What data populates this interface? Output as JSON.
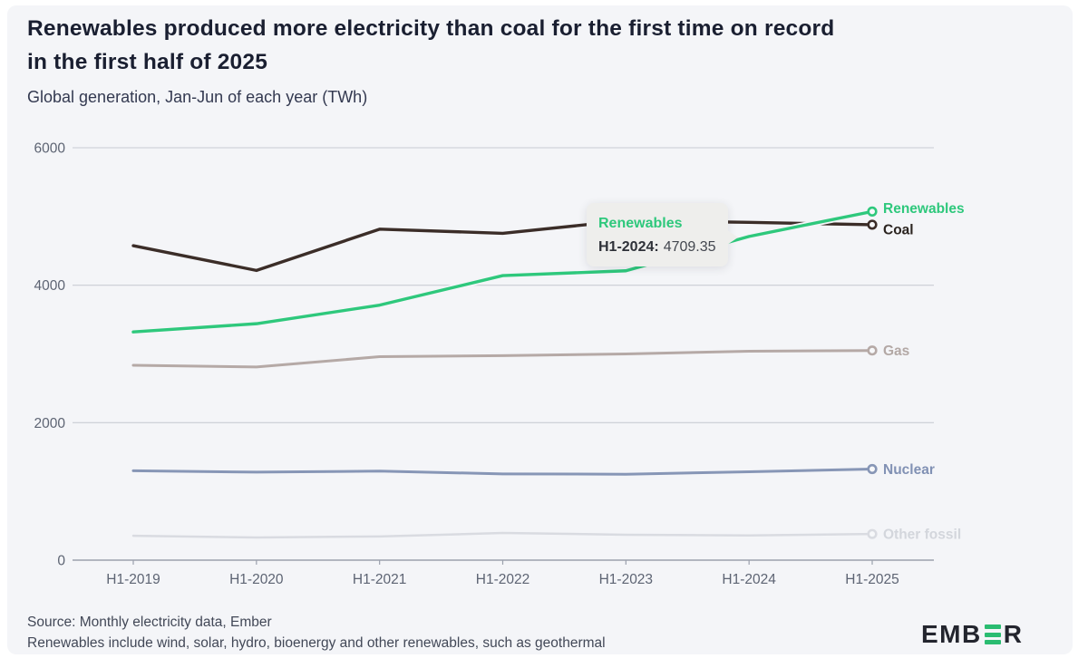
{
  "page": {
    "outer_background": "#ffffff",
    "card_background": "#f4f5f8"
  },
  "header": {
    "title_line1": "Renewables produced more electricity than coal for the first time on record",
    "title_line2": "in the first half of 2025",
    "subtitle": "Global generation, Jan-Jun of each year (TWh)"
  },
  "chart_data": {
    "type": "line",
    "categories": [
      "H1-2019",
      "H1-2020",
      "H1-2021",
      "H1-2022",
      "H1-2023",
      "H1-2024",
      "H1-2025"
    ],
    "series": [
      {
        "name": "Renewables",
        "color": "#2ec87c",
        "label_color": "#2ec87c",
        "values": [
          3320,
          3440,
          3710,
          4140,
          4210,
          4709.35,
          5072
        ]
      },
      {
        "name": "Coal",
        "color": "#3b2d28",
        "label_color": "#2b2420",
        "values": [
          4575,
          4215,
          4815,
          4755,
          4940,
          4915,
          4880
        ]
      },
      {
        "name": "Gas",
        "color": "#b5a9a6",
        "label_color": "#b3a8a5",
        "values": [
          2835,
          2810,
          2960,
          2975,
          3000,
          3040,
          3050
        ]
      },
      {
        "name": "Nuclear",
        "color": "#8796b6",
        "label_color": "#8191b4",
        "values": [
          1300,
          1280,
          1295,
          1255,
          1250,
          1285,
          1325
        ]
      },
      {
        "name": "Other fossil",
        "color": "#d9dbe1",
        "label_color": "#d3d6dc",
        "values": [
          355,
          330,
          345,
          395,
          370,
          360,
          380
        ]
      }
    ],
    "title": "Renewables produced more electricity than coal for the first time on record in the first half of 2025",
    "subtitle": "Global generation, Jan-Jun of each year (TWh)",
    "xlabel": "",
    "ylabel": "TWh",
    "ylim": [
      0,
      6000
    ],
    "yticks": [
      0,
      2000,
      4000,
      6000
    ],
    "grid": true,
    "grid_color": "#c9ccd3",
    "axis_color": "#9ba1ad",
    "tick_label_color": "#5d6473",
    "legend_position": "end-of-line"
  },
  "tooltip": {
    "series": "Renewables",
    "label": "H1-2024:",
    "value": "4709.35"
  },
  "footer": {
    "source": "Source: Monthly electricity data, Ember",
    "note": "Renewables include wind, solar, hydro, bioenergy and other renewables, such as geothermal",
    "logo_prefix": "EMB",
    "logo_suffix": "R"
  }
}
